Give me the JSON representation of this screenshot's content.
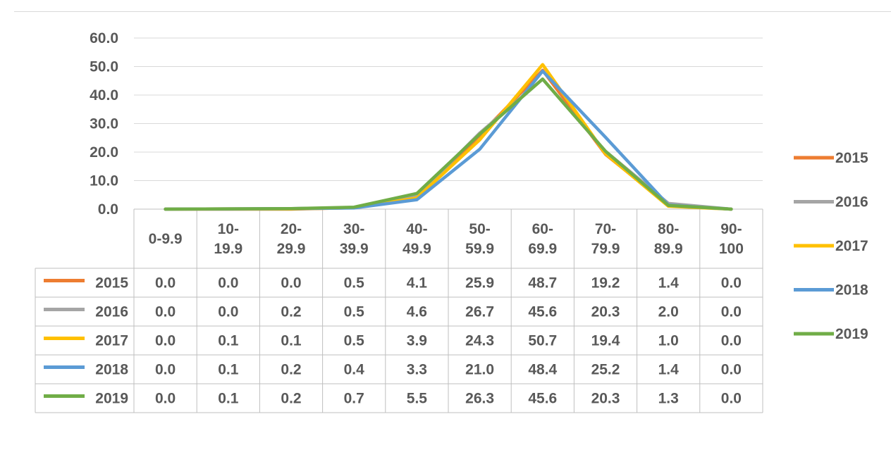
{
  "chart_data": {
    "type": "line",
    "categories": [
      [
        "0-9.9"
      ],
      [
        "10-",
        "19.9"
      ],
      [
        "20-",
        "29.9"
      ],
      [
        "30-",
        "39.9"
      ],
      [
        "40-",
        "49.9"
      ],
      [
        "50-",
        "59.9"
      ],
      [
        "60-",
        "69.9"
      ],
      [
        "70-",
        "79.9"
      ],
      [
        "80-",
        "89.9"
      ],
      [
        "90-",
        "100"
      ]
    ],
    "ylim": [
      0,
      60
    ],
    "y_ticks": [
      "0.0",
      "10.0",
      "20.0",
      "30.0",
      "40.0",
      "50.0",
      "60.0"
    ],
    "grid": true,
    "legend_position": "right",
    "data_table": true,
    "series": [
      {
        "name": "2015",
        "color": "#ED7D31",
        "values": [
          0.0,
          0.0,
          0.0,
          0.5,
          4.1,
          25.9,
          48.7,
          19.2,
          1.4,
          0.0
        ],
        "labels": [
          "0.0",
          "0.0",
          "0.0",
          "0.5",
          "4.1",
          "25.9",
          "48.7",
          "19.2",
          "1.4",
          "0.0"
        ]
      },
      {
        "name": "2016",
        "color": "#A5A5A5",
        "values": [
          0.0,
          0.0,
          0.2,
          0.5,
          4.6,
          26.7,
          45.6,
          20.3,
          2.0,
          0.0
        ],
        "labels": [
          "0.0",
          "0.0",
          "0.2",
          "0.5",
          "4.6",
          "26.7",
          "45.6",
          "20.3",
          "2.0",
          "0.0"
        ]
      },
      {
        "name": "2017",
        "color": "#FFC000",
        "values": [
          0.0,
          0.1,
          0.1,
          0.5,
          3.9,
          24.3,
          50.7,
          19.4,
          1.0,
          0.0
        ],
        "labels": [
          "0.0",
          "0.1",
          "0.1",
          "0.5",
          "3.9",
          "24.3",
          "50.7",
          "19.4",
          "1.0",
          "0.0"
        ]
      },
      {
        "name": "2018",
        "color": "#5B9BD5",
        "values": [
          0.0,
          0.1,
          0.2,
          0.4,
          3.3,
          21.0,
          48.4,
          25.2,
          1.4,
          0.0
        ],
        "labels": [
          "0.0",
          "0.1",
          "0.2",
          "0.4",
          "3.3",
          "21.0",
          "48.4",
          "25.2",
          "1.4",
          "0.0"
        ]
      },
      {
        "name": "2019",
        "color": "#70AD47",
        "values": [
          0.0,
          0.1,
          0.2,
          0.7,
          5.5,
          26.3,
          45.6,
          20.3,
          1.3,
          0.0
        ],
        "labels": [
          "0.0",
          "0.1",
          "0.2",
          "0.7",
          "5.5",
          "26.3",
          "45.6",
          "20.3",
          "1.3",
          "0.0"
        ]
      }
    ]
  }
}
